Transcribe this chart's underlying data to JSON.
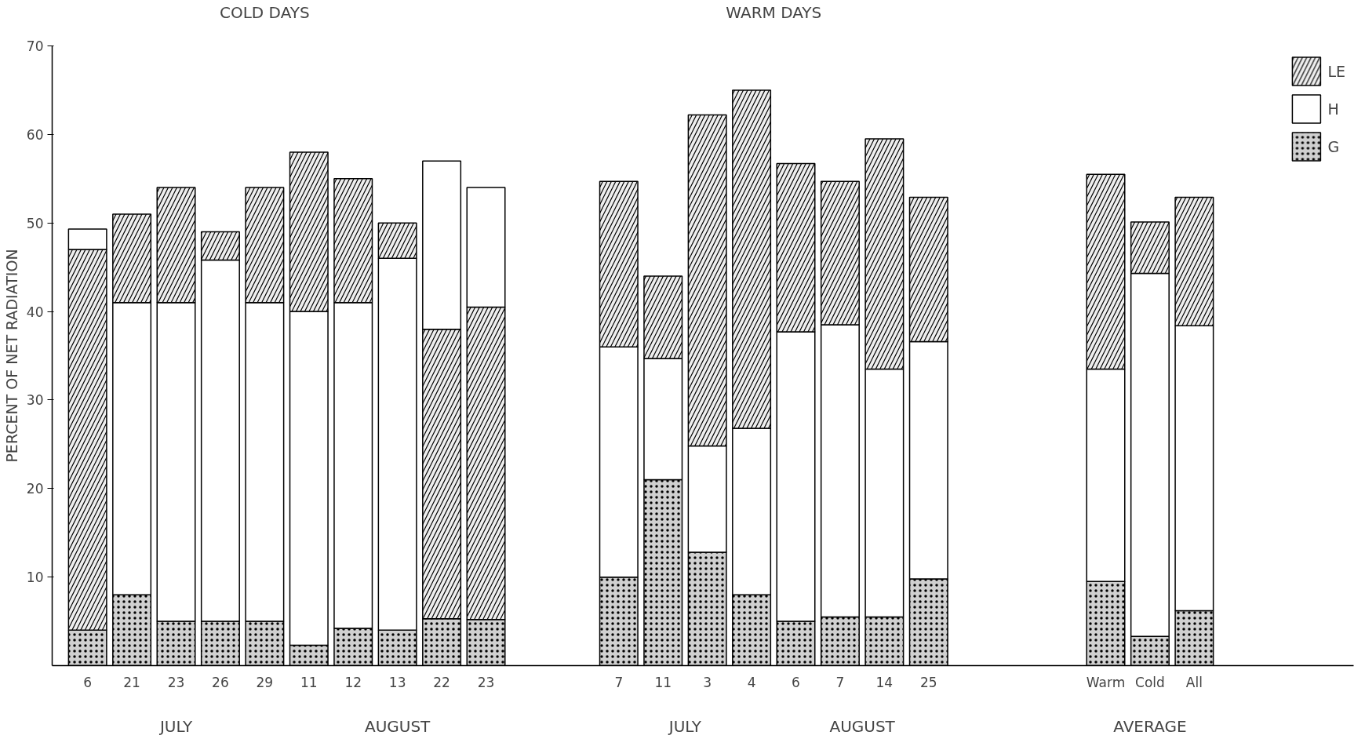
{
  "chart_data": {
    "type": "bar",
    "stacked": true,
    "ylabel": "PERCENT OF NET RADIATION",
    "categories": [
      "6",
      "21",
      "23",
      "26",
      "29",
      "11",
      "12",
      "13",
      "22",
      "23",
      null,
      null,
      "7",
      "11",
      "3",
      "4",
      "6",
      "7",
      "14",
      "25",
      null,
      null,
      null,
      "Warm",
      "Cold",
      "All"
    ],
    "series": [
      {
        "name": "G",
        "color": "#d0d0d0",
        "values": [
          4,
          8,
          5,
          5,
          5,
          2.3,
          4.2,
          4,
          5.3,
          5.2,
          null,
          null,
          10,
          21,
          12.8,
          8,
          5,
          5.5,
          5.5,
          9.8,
          null,
          null,
          null,
          9.5,
          3.3,
          6.2
        ]
      },
      {
        "color": "#eeeeee",
        "values": [
          43,
          null,
          null,
          null,
          null,
          null,
          null,
          null,
          32.7,
          35.3,
          null,
          null,
          null,
          null,
          null,
          null,
          null,
          null,
          null,
          null,
          null,
          null,
          null,
          null,
          null,
          null
        ]
      },
      {
        "name": "H",
        "color": "#ffffff",
        "values": [
          2.3,
          33,
          36,
          40.8,
          36,
          37.7,
          36.8,
          42,
          19,
          13.5,
          null,
          null,
          26,
          13.7,
          12,
          18.8,
          32.7,
          33,
          28,
          26.8,
          null,
          null,
          null,
          24,
          41,
          32.2
        ]
      },
      {
        "name": "LE",
        "color": "#eeeeee",
        "values": [
          null,
          10,
          13,
          3.2,
          13,
          18,
          14,
          4,
          null,
          null,
          null,
          null,
          18.7,
          9.3,
          37.4,
          38.2,
          19,
          16.2,
          26,
          16.3,
          null,
          null,
          null,
          22,
          5.8,
          14.5
        ]
      }
    ],
    "ylim": [
      0,
      70
    ],
    "yticks": [
      10,
      20,
      30,
      40,
      50,
      60,
      70
    ],
    "grid": false,
    "legend": "top right",
    "annotations": [
      "COLD DAYS",
      "WARM DAYS",
      "JULY",
      "AUGUST",
      "JULY",
      "AUGUST",
      "AVERAGE"
    ]
  }
}
